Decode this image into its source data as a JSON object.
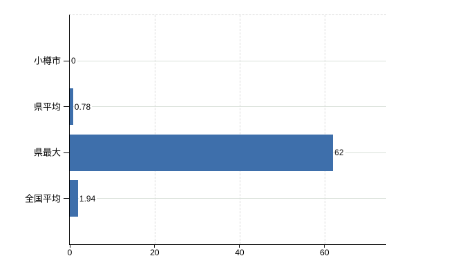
{
  "chart_data": {
    "type": "bar",
    "orientation": "horizontal",
    "title": "",
    "xlabel": "",
    "ylabel": "",
    "categories": [
      "小樽市",
      "県平均",
      "県最大",
      "全国平均"
    ],
    "values": [
      0,
      0.78,
      62,
      1.94
    ],
    "value_labels": [
      "0",
      "0.78",
      "62",
      "1.94"
    ],
    "x_ticks": [
      0,
      20,
      40,
      60
    ],
    "x_tick_labels": [
      "0",
      "20",
      "40",
      "60"
    ],
    "xlim": [
      0,
      74.5
    ],
    "legend": "none",
    "grid": {
      "vertical": "dashed",
      "horizontal": "solid",
      "top_border": "dashed"
    }
  },
  "colors": {
    "bar": "#3e6fab",
    "horizontal_grid": "#d9e0d9",
    "vertical_grid": "#d9d9d9",
    "axis": "#000000",
    "text": "#000000",
    "background": "#ffffff"
  }
}
